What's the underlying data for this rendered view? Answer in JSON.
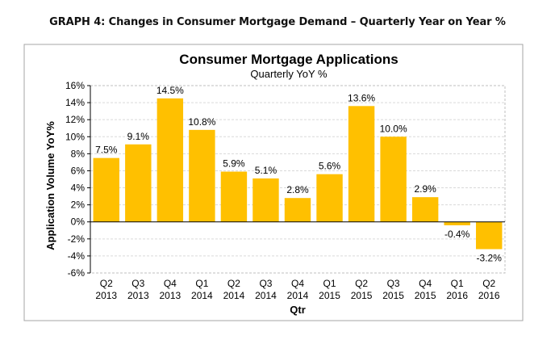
{
  "caption": "GRAPH 4: Changes in Consumer Mortgage Demand – Quarterly Year on Year %",
  "chart_data": {
    "type": "bar",
    "title": "Consumer Mortgage Applications",
    "subtitle": "Quarterly YoY %",
    "xlabel": "Qtr",
    "ylabel": "Application Volume YoY%",
    "ylim": [
      -6,
      16
    ],
    "yticks": [
      "-6%",
      "-4%",
      "-2%",
      "0%",
      "2%",
      "4%",
      "6%",
      "8%",
      "10%",
      "12%",
      "14%",
      "16%"
    ],
    "ytick_values": [
      -6,
      -4,
      -2,
      0,
      2,
      4,
      6,
      8,
      10,
      12,
      14,
      16
    ],
    "grid": true,
    "bar_color": "#FFC000",
    "categories": [
      {
        "q": "Q2",
        "y": "2013"
      },
      {
        "q": "Q3",
        "y": "2013"
      },
      {
        "q": "Q4",
        "y": "2013"
      },
      {
        "q": "Q1",
        "y": "2014"
      },
      {
        "q": "Q2",
        "y": "2014"
      },
      {
        "q": "Q3",
        "y": "2014"
      },
      {
        "q": "Q4",
        "y": "2014"
      },
      {
        "q": "Q1",
        "y": "2015"
      },
      {
        "q": "Q2",
        "y": "2015"
      },
      {
        "q": "Q3",
        "y": "2015"
      },
      {
        "q": "Q4",
        "y": "2015"
      },
      {
        "q": "Q1",
        "y": "2016"
      },
      {
        "q": "Q2",
        "y": "2016"
      }
    ],
    "values": [
      7.5,
      9.1,
      14.5,
      10.8,
      5.9,
      5.1,
      2.8,
      5.6,
      13.6,
      10.0,
      2.9,
      -0.4,
      -3.2
    ],
    "labels": [
      "7.5%",
      "9.1%",
      "14.5%",
      "10.8%",
      "5.9%",
      "5.1%",
      "2.8%",
      "5.6%",
      "13.6%",
      "10.0%",
      "2.9%",
      "-0.4%",
      "-3.2%"
    ]
  }
}
